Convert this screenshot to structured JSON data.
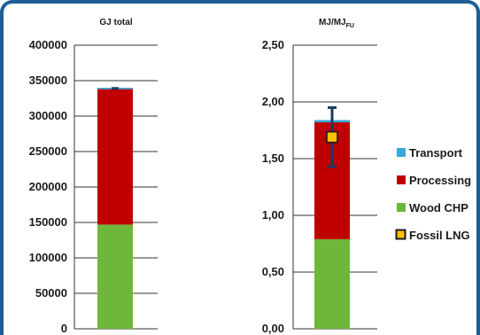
{
  "colors": {
    "frame": "#1d5e93",
    "transport": "#3aa8dc",
    "processing": "#c00000",
    "wood_chp": "#6fb73b",
    "fossil_lng_fill": "#ffc000",
    "fossil_lng_border": "#1a1a1a",
    "error_bar": "#1f3864",
    "grid": "#333333"
  },
  "legend": {
    "items": [
      {
        "name": "Transport",
        "color": "#3aa8dc",
        "icon": "square-swatch"
      },
      {
        "name": "Processing",
        "color": "#c00000",
        "icon": "square-swatch"
      },
      {
        "name": "Wood CHP",
        "color": "#6fb73b",
        "icon": "square-swatch"
      },
      {
        "name": "Fossil LNG",
        "color": "#ffc000",
        "icon": "bordered-square-marker"
      }
    ]
  },
  "chart_data": [
    {
      "type": "bar",
      "stacked": true,
      "title": "GJ total",
      "categories": [
        ""
      ],
      "series": [
        {
          "name": "Wood CHP",
          "values": [
            147000
          ]
        },
        {
          "name": "Processing",
          "values": [
            191000
          ]
        },
        {
          "name": "Transport",
          "values": [
            2000
          ]
        }
      ],
      "error_bar": {
        "low": 338000,
        "high": 340000
      },
      "ylim": [
        0,
        400000
      ],
      "yticks": [
        "0",
        "50000",
        "100000",
        "150000",
        "200000",
        "250000",
        "300000",
        "350000",
        "400000"
      ],
      "grid": true
    },
    {
      "type": "bar",
      "stacked": true,
      "title": "MJ/MJ",
      "title_subscript": "FU",
      "categories": [
        ""
      ],
      "series": [
        {
          "name": "Wood CHP",
          "values": [
            0.79
          ]
        },
        {
          "name": "Processing",
          "values": [
            1.03
          ]
        },
        {
          "name": "Transport",
          "values": [
            0.02
          ]
        }
      ],
      "marker": {
        "name": "Fossil LNG",
        "value": 1.69
      },
      "error_bar": {
        "low": 1.43,
        "high": 1.95
      },
      "ylim": [
        0,
        2.5
      ],
      "yticks": [
        "0,00",
        "0,50",
        "1,00",
        "1,50",
        "2,00",
        "2,50"
      ],
      "grid": true,
      "legend_position": "right"
    }
  ]
}
